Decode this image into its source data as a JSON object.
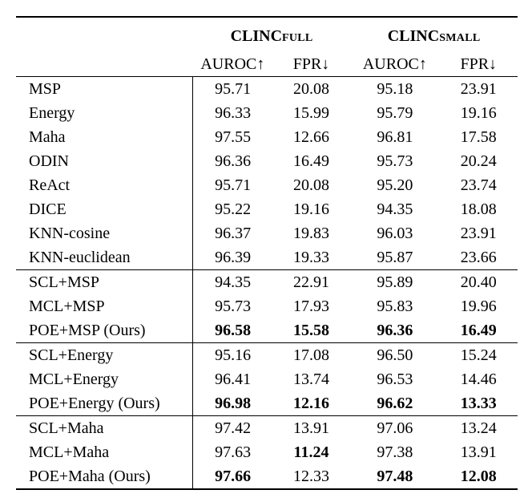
{
  "datasets": [
    {
      "name": "CLINC",
      "subscript": "FULL"
    },
    {
      "name": "CLINC",
      "subscript": "SMALL"
    }
  ],
  "metrics": [
    "AUROC↑",
    "FPR↓",
    "AUROC↑",
    "FPR↓"
  ],
  "groups": [
    {
      "rows": [
        {
          "method": "MSP",
          "values": [
            "95.71",
            "20.08",
            "95.18",
            "23.91"
          ],
          "bold": [
            false,
            false,
            false,
            false
          ]
        },
        {
          "method": "Energy",
          "values": [
            "96.33",
            "15.99",
            "95.79",
            "19.16"
          ],
          "bold": [
            false,
            false,
            false,
            false
          ]
        },
        {
          "method": "Maha",
          "values": [
            "97.55",
            "12.66",
            "96.81",
            "17.58"
          ],
          "bold": [
            false,
            false,
            false,
            false
          ]
        },
        {
          "method": "ODIN",
          "values": [
            "96.36",
            "16.49",
            "95.73",
            "20.24"
          ],
          "bold": [
            false,
            false,
            false,
            false
          ]
        },
        {
          "method": "ReAct",
          "values": [
            "95.71",
            "20.08",
            "95.20",
            "23.74"
          ],
          "bold": [
            false,
            false,
            false,
            false
          ]
        },
        {
          "method": "DICE",
          "values": [
            "95.22",
            "19.16",
            "94.35",
            "18.08"
          ],
          "bold": [
            false,
            false,
            false,
            false
          ]
        },
        {
          "method": "KNN-cosine",
          "values": [
            "96.37",
            "19.83",
            "96.03",
            "23.91"
          ],
          "bold": [
            false,
            false,
            false,
            false
          ]
        },
        {
          "method": "KNN-euclidean",
          "values": [
            "96.39",
            "19.33",
            "95.87",
            "23.66"
          ],
          "bold": [
            false,
            false,
            false,
            false
          ]
        }
      ]
    },
    {
      "rows": [
        {
          "method": "SCL+MSP",
          "values": [
            "94.35",
            "22.91",
            "95.89",
            "20.40"
          ],
          "bold": [
            false,
            false,
            false,
            false
          ]
        },
        {
          "method": "MCL+MSP",
          "values": [
            "95.73",
            "17.93",
            "95.83",
            "19.96"
          ],
          "bold": [
            false,
            false,
            false,
            false
          ]
        },
        {
          "method": "POE+MSP (Ours)",
          "values": [
            "96.58",
            "15.58",
            "96.36",
            "16.49"
          ],
          "bold": [
            true,
            true,
            true,
            true
          ]
        }
      ]
    },
    {
      "rows": [
        {
          "method": "SCL+Energy",
          "values": [
            "95.16",
            "17.08",
            "96.50",
            "15.24"
          ],
          "bold": [
            false,
            false,
            false,
            false
          ]
        },
        {
          "method": "MCL+Energy",
          "values": [
            "96.41",
            "13.74",
            "96.53",
            "14.46"
          ],
          "bold": [
            false,
            false,
            false,
            false
          ]
        },
        {
          "method": "POE+Energy (Ours)",
          "values": [
            "96.98",
            "12.16",
            "96.62",
            "13.33"
          ],
          "bold": [
            true,
            true,
            true,
            true
          ]
        }
      ]
    },
    {
      "rows": [
        {
          "method": "SCL+Maha",
          "values": [
            "97.42",
            "13.91",
            "97.06",
            "13.24"
          ],
          "bold": [
            false,
            false,
            false,
            false
          ]
        },
        {
          "method": "MCL+Maha",
          "values": [
            "97.63",
            "11.24",
            "97.38",
            "13.91"
          ],
          "bold": [
            false,
            true,
            false,
            false
          ]
        },
        {
          "method": "POE+Maha (Ours)",
          "values": [
            "97.66",
            "12.33",
            "97.48",
            "12.08"
          ],
          "bold": [
            true,
            false,
            true,
            true
          ]
        }
      ]
    }
  ]
}
